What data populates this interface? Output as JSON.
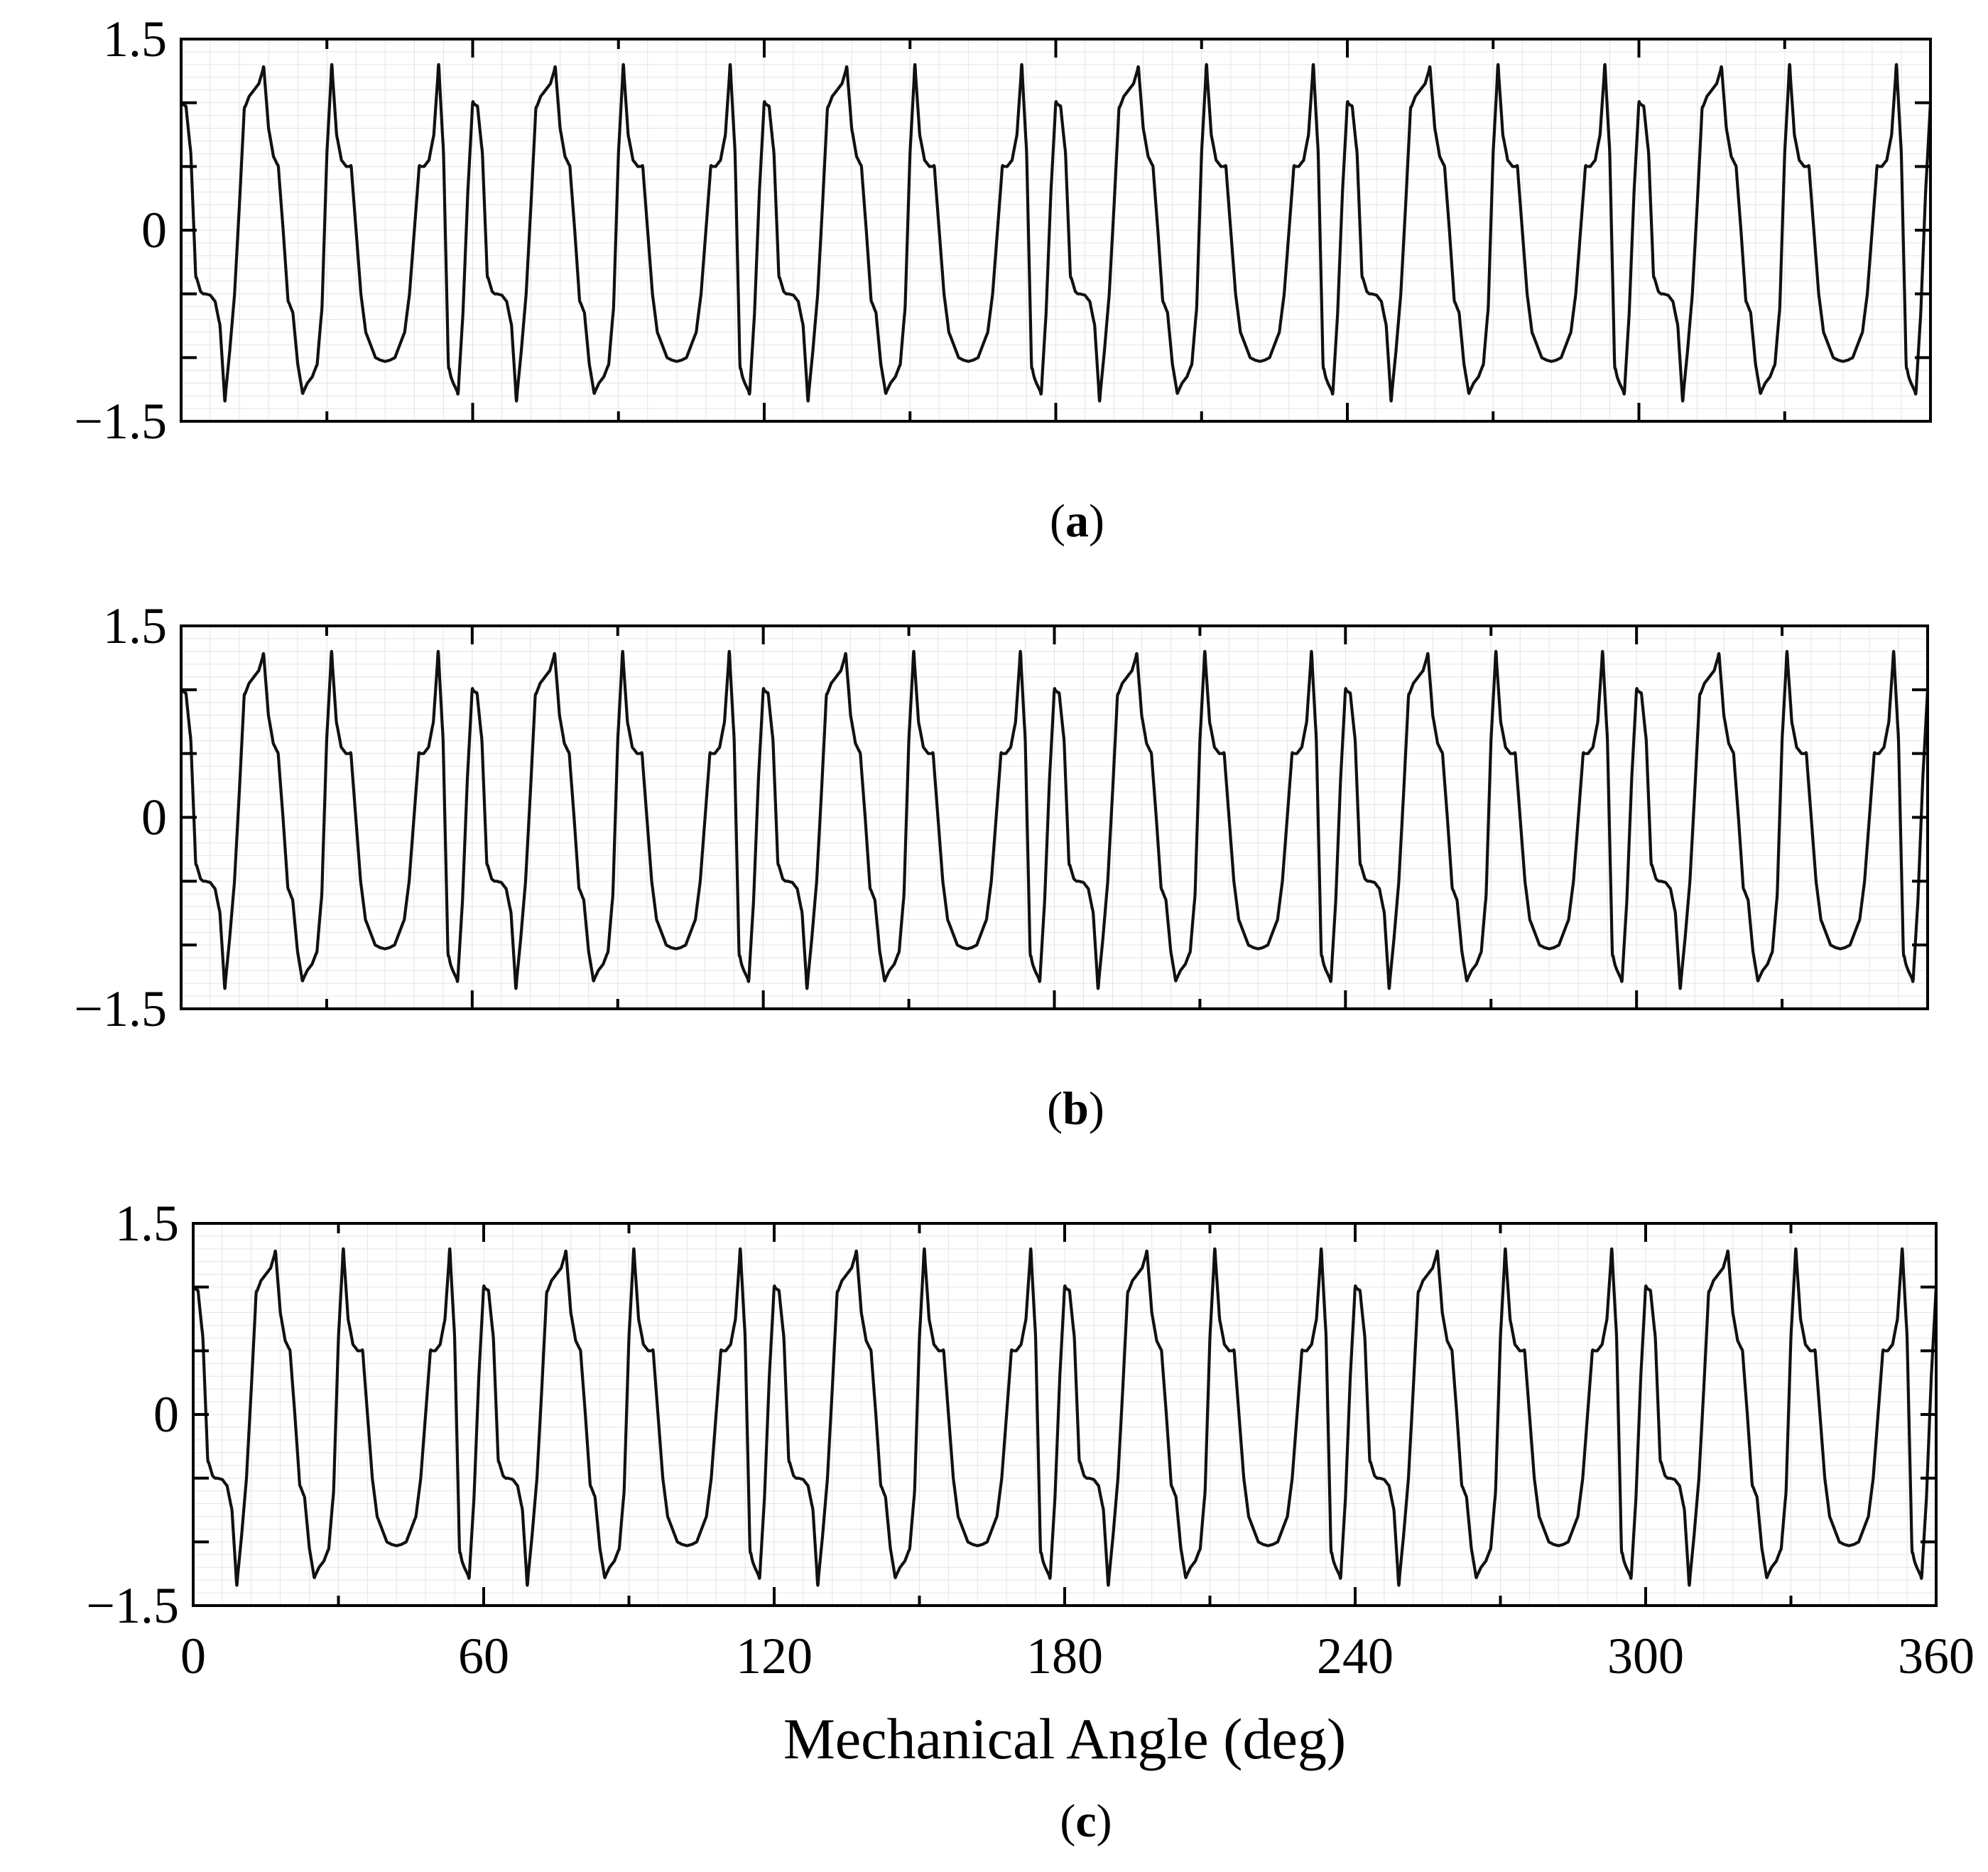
{
  "chart_data": [
    {
      "type": "line",
      "panel": "a",
      "caption_letter": "a",
      "xlabel": "",
      "ylabel": "",
      "xlim": [
        0,
        360
      ],
      "ylim": [
        -1.5,
        1.5
      ],
      "x_ticks": [
        0,
        60,
        120,
        180,
        240,
        300,
        360
      ],
      "x_tick_labels_shown": false,
      "y_ticks": [
        -1.5,
        0,
        1.5
      ],
      "y_tick_labels": [
        "−1.5",
        "0",
        "1.5"
      ],
      "grid": "on",
      "series": [
        {
          "pattern": "periodic",
          "period_deg": 60,
          "phase_deg": 0,
          "x": [
            0,
            1,
            2,
            3,
            4,
            4.5,
            5,
            6,
            7,
            8,
            9,
            10,
            11,
            12,
            13,
            14,
            15,
            16,
            17,
            18,
            19,
            20,
            21,
            22,
            23,
            24,
            25,
            26,
            27,
            28,
            29,
            30,
            31,
            32,
            33,
            34,
            35,
            36,
            37,
            38,
            39,
            40,
            41,
            42,
            43,
            44,
            45,
            46,
            47,
            48,
            49,
            50,
            51,
            52,
            53,
            54,
            55,
            55.5,
            56,
            57,
            58,
            59,
            60
          ],
          "values": [
            1.0,
            0.97,
            0.6,
            -0.35,
            -0.48,
            -0.5,
            -0.5,
            -0.51,
            -0.56,
            -0.75,
            -1.34,
            -0.95,
            -0.5,
            0.2,
            0.95,
            1.05,
            1.1,
            1.15,
            1.28,
            0.8,
            0.58,
            0.5,
            0.0,
            -0.55,
            -0.65,
            -1.05,
            -1.28,
            -1.2,
            -1.15,
            -1.05,
            -0.6,
            0.6,
            1.3,
            0.75,
            0.55,
            0.5,
            0.5,
            0.0,
            -0.5,
            -0.8,
            -0.9,
            -1.0,
            -1.02,
            -1.03,
            -1.02,
            -1.0,
            -0.9,
            -0.8,
            -0.5,
            0.0,
            0.5,
            0.5,
            0.55,
            0.75,
            1.3,
            0.6,
            -1.05,
            -1.15,
            -1.2,
            -1.28,
            -0.65,
            0.3,
            1.0
          ]
        }
      ]
    },
    {
      "type": "line",
      "panel": "b",
      "caption_letter": "b",
      "xlabel": "",
      "ylabel": "",
      "xlim": [
        0,
        360
      ],
      "ylim": [
        -1.5,
        1.5
      ],
      "x_ticks": [
        0,
        60,
        120,
        180,
        240,
        300,
        360
      ],
      "x_tick_labels_shown": false,
      "y_ticks": [
        -1.5,
        0,
        1.5
      ],
      "y_tick_labels": [
        "−1.5",
        "0",
        "1.5"
      ],
      "grid": "on",
      "series": [
        {
          "pattern": "periodic",
          "period_deg": 60,
          "phase_deg": 0,
          "x": [
            0,
            1,
            2,
            3,
            4,
            4.5,
            5,
            6,
            7,
            8,
            9,
            10,
            11,
            12,
            13,
            14,
            15,
            16,
            17,
            18,
            19,
            20,
            21,
            22,
            23,
            24,
            25,
            26,
            27,
            28,
            29,
            30,
            31,
            32,
            33,
            34,
            35,
            36,
            37,
            38,
            39,
            40,
            41,
            42,
            43,
            44,
            45,
            46,
            47,
            48,
            49,
            50,
            51,
            52,
            53,
            54,
            55,
            55.5,
            56,
            57,
            58,
            59,
            60
          ],
          "values": [
            1.0,
            0.97,
            0.6,
            -0.35,
            -0.48,
            -0.5,
            -0.5,
            -0.51,
            -0.56,
            -0.75,
            -1.34,
            -0.95,
            -0.5,
            0.2,
            0.95,
            1.05,
            1.1,
            1.15,
            1.28,
            0.8,
            0.58,
            0.5,
            0.0,
            -0.55,
            -0.65,
            -1.05,
            -1.28,
            -1.2,
            -1.15,
            -1.05,
            -0.6,
            0.6,
            1.3,
            0.75,
            0.55,
            0.5,
            0.5,
            0.0,
            -0.5,
            -0.8,
            -0.9,
            -1.0,
            -1.02,
            -1.03,
            -1.02,
            -1.0,
            -0.9,
            -0.8,
            -0.5,
            0.0,
            0.5,
            0.5,
            0.55,
            0.75,
            1.3,
            0.6,
            -1.05,
            -1.15,
            -1.2,
            -1.28,
            -0.65,
            0.3,
            1.0
          ]
        }
      ]
    },
    {
      "type": "line",
      "panel": "c",
      "caption_letter": "c",
      "xlabel": "Mechanical Angle (deg)",
      "ylabel": "",
      "xlim": [
        0,
        360
      ],
      "ylim": [
        -1.5,
        1.5
      ],
      "x_ticks": [
        0,
        60,
        120,
        180,
        240,
        300,
        360
      ],
      "x_tick_labels_shown": true,
      "x_tick_labels": [
        "0",
        "60",
        "120",
        "180",
        "240",
        "300",
        "360"
      ],
      "y_ticks": [
        -1.5,
        0,
        1.5
      ],
      "y_tick_labels": [
        "−1.5",
        "0",
        "1.5"
      ],
      "grid": "on",
      "series": [
        {
          "pattern": "periodic",
          "period_deg": 60,
          "phase_deg": 0,
          "x": [
            0,
            1,
            2,
            3,
            4,
            4.5,
            5,
            6,
            7,
            8,
            9,
            10,
            11,
            12,
            13,
            14,
            15,
            16,
            17,
            18,
            19,
            20,
            21,
            22,
            23,
            24,
            25,
            26,
            27,
            28,
            29,
            30,
            31,
            32,
            33,
            34,
            35,
            36,
            37,
            38,
            39,
            40,
            41,
            42,
            43,
            44,
            45,
            46,
            47,
            48,
            49,
            50,
            51,
            52,
            53,
            54,
            55,
            55.5,
            56,
            57,
            58,
            59,
            60
          ],
          "values": [
            1.0,
            0.97,
            0.6,
            -0.35,
            -0.48,
            -0.5,
            -0.5,
            -0.51,
            -0.56,
            -0.75,
            -1.34,
            -0.95,
            -0.5,
            0.2,
            0.95,
            1.05,
            1.1,
            1.15,
            1.28,
            0.8,
            0.58,
            0.5,
            0.0,
            -0.55,
            -0.65,
            -1.05,
            -1.28,
            -1.2,
            -1.15,
            -1.05,
            -0.6,
            0.6,
            1.3,
            0.75,
            0.55,
            0.5,
            0.5,
            0.0,
            -0.5,
            -0.8,
            -0.9,
            -1.0,
            -1.02,
            -1.03,
            -1.02,
            -1.0,
            -0.9,
            -0.8,
            -0.5,
            0.0,
            0.5,
            0.5,
            0.55,
            0.75,
            1.3,
            0.6,
            -1.05,
            -1.15,
            -1.2,
            -1.28,
            -0.65,
            0.3,
            1.0
          ]
        }
      ]
    }
  ],
  "colors": {
    "line": "#111111",
    "frame": "#000000",
    "grid": "#e4e4e4",
    "background": "#ffffff"
  }
}
